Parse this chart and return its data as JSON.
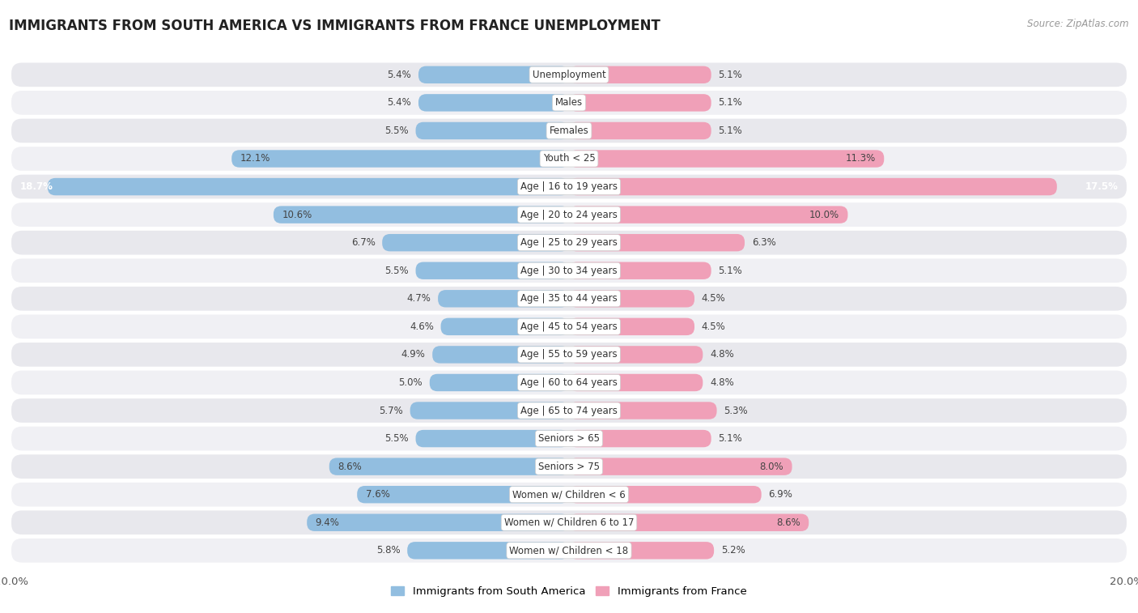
{
  "title": "IMMIGRANTS FROM SOUTH AMERICA VS IMMIGRANTS FROM FRANCE UNEMPLOYMENT",
  "source": "Source: ZipAtlas.com",
  "categories": [
    "Unemployment",
    "Males",
    "Females",
    "Youth < 25",
    "Age | 16 to 19 years",
    "Age | 20 to 24 years",
    "Age | 25 to 29 years",
    "Age | 30 to 34 years",
    "Age | 35 to 44 years",
    "Age | 45 to 54 years",
    "Age | 55 to 59 years",
    "Age | 60 to 64 years",
    "Age | 65 to 74 years",
    "Seniors > 65",
    "Seniors > 75",
    "Women w/ Children < 6",
    "Women w/ Children 6 to 17",
    "Women w/ Children < 18"
  ],
  "south_america": [
    5.4,
    5.4,
    5.5,
    12.1,
    18.7,
    10.6,
    6.7,
    5.5,
    4.7,
    4.6,
    4.9,
    5.0,
    5.7,
    5.5,
    8.6,
    7.6,
    9.4,
    5.8
  ],
  "france": [
    5.1,
    5.1,
    5.1,
    11.3,
    17.5,
    10.0,
    6.3,
    5.1,
    4.5,
    4.5,
    4.8,
    4.8,
    5.3,
    5.1,
    8.0,
    6.9,
    8.6,
    5.2
  ],
  "color_south_america": "#92bee0",
  "color_france": "#f0a0b8",
  "row_bg_color": "#e8e8ed",
  "row_bg_light": "#f0f0f4",
  "page_bg": "#ffffff",
  "max_val": 20.0,
  "legend_label_sa": "Immigrants from South America",
  "legend_label_fr": "Immigrants from France",
  "title_fontsize": 12,
  "label_fontsize": 8.5,
  "value_fontsize": 8.5
}
